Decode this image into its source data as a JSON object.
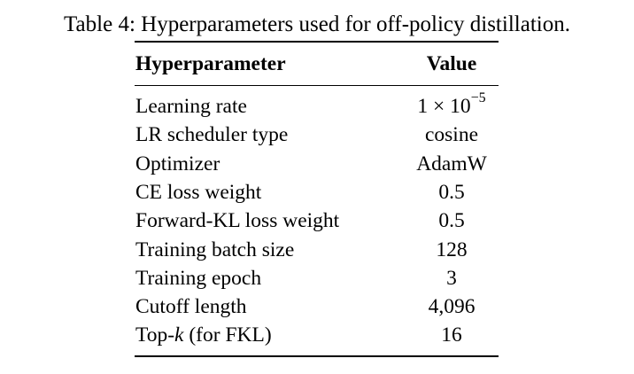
{
  "caption": {
    "label": "Table 4:",
    "text": "Hyperparameters used for off-policy distillation."
  },
  "table": {
    "header": [
      "Hyperparameter",
      "Value"
    ],
    "rows": [
      [
        "Learning rate",
        [
          {
            "text": "1 × 10"
          },
          {
            "text": "−5",
            "sup": true
          }
        ]
      ],
      [
        "LR scheduler type",
        "cosine"
      ],
      [
        "Optimizer",
        "AdamW"
      ],
      [
        "CE loss weight",
        "0.5"
      ],
      [
        "Forward-KL loss weight",
        "0.5"
      ],
      [
        "Training batch size",
        "128"
      ],
      [
        "Training epoch",
        "3"
      ],
      [
        "Cutoff length",
        "4,096"
      ],
      [
        [
          {
            "text": "Top-"
          },
          {
            "text": "k",
            "italic": true
          },
          {
            "text": " (for FKL)"
          }
        ],
        "16"
      ]
    ]
  }
}
